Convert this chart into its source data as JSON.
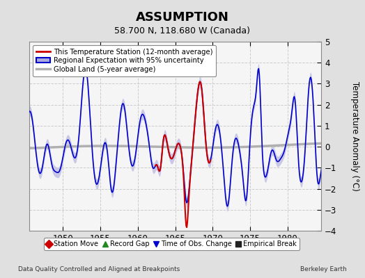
{
  "title": "ASSUMPTION",
  "subtitle": "58.700 N, 118.680 W (Canada)",
  "ylabel": "Temperature Anomaly (°C)",
  "footer_left": "Data Quality Controlled and Aligned at Breakpoints",
  "footer_right": "Berkeley Earth",
  "xlim": [
    1945.5,
    1984.5
  ],
  "ylim": [
    -4,
    5
  ],
  "yticks": [
    -4,
    -3,
    -2,
    -1,
    0,
    1,
    2,
    3,
    4,
    5
  ],
  "xticks": [
    1950,
    1955,
    1960,
    1965,
    1970,
    1975,
    1980
  ],
  "bg_color": "#e0e0e0",
  "plot_bg_color": "#f5f5f5",
  "regional_color": "#0000cc",
  "regional_fill_color": "#aaaadd",
  "station_color": "#cc0000",
  "global_color": "#b0b0b0",
  "legend_items": [
    {
      "label": "This Temperature Station (12-month average)",
      "color": "#cc0000",
      "lw": 2
    },
    {
      "label": "Regional Expectation with 95% uncertainty",
      "color": "#0000cc",
      "lw": 2
    },
    {
      "label": "Global Land (5-year average)",
      "color": "#b0b0b0",
      "lw": 2
    }
  ],
  "bottom_legend": [
    {
      "label": "Station Move",
      "color": "#cc0000",
      "marker": "D"
    },
    {
      "label": "Record Gap",
      "color": "#228822",
      "marker": "^"
    },
    {
      "label": "Time of Obs. Change",
      "color": "#0000cc",
      "marker": "v"
    },
    {
      "label": "Empirical Break",
      "color": "#222222",
      "marker": "s"
    }
  ]
}
